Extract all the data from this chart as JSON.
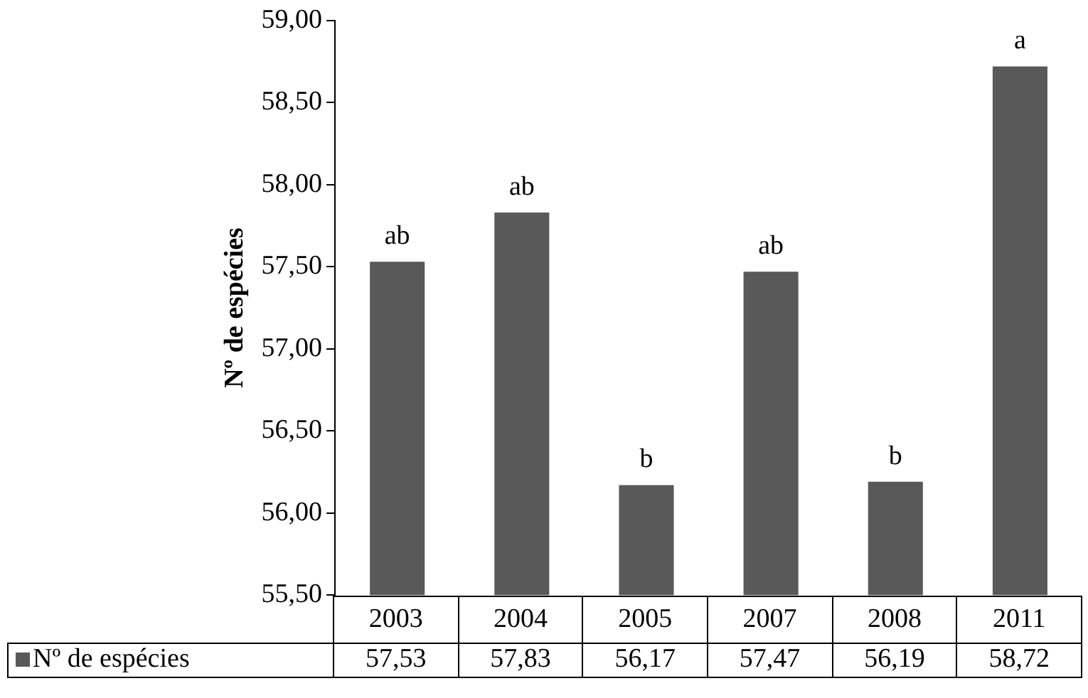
{
  "chart_data": {
    "type": "bar",
    "ylabel": "Nº de espécies",
    "categories": [
      "2003",
      "2004",
      "2005",
      "2007",
      "2008",
      "2011"
    ],
    "series": [
      {
        "name": "Nº de espécies",
        "color": "#595959",
        "values": [
          57.53,
          57.83,
          56.17,
          57.47,
          56.19,
          58.72
        ],
        "value_labels": [
          "57,53",
          "57,83",
          "56,17",
          "57,47",
          "56,19",
          "58,72"
        ]
      }
    ],
    "ylim": [
      55.5,
      59
    ],
    "yticks": [
      {
        "value": 55.5,
        "label": "55,50"
      },
      {
        "value": 56,
        "label": "56,00"
      },
      {
        "value": 56.5,
        "label": "56,50"
      },
      {
        "value": 57,
        "label": "57,00"
      },
      {
        "value": 57.5,
        "label": "57,50"
      },
      {
        "value": 58,
        "label": "58,00"
      },
      {
        "value": 58.5,
        "label": "58,50"
      },
      {
        "value": 59,
        "label": "59,00"
      }
    ],
    "annotations": [
      {
        "text": "ab",
        "x": "2003",
        "y": 57.53
      },
      {
        "text": "ab",
        "x": "2004",
        "y": 57.83
      },
      {
        "text": "b",
        "x": "2005",
        "y": 56.17
      },
      {
        "text": "ab",
        "x": "2007",
        "y": 57.47
      },
      {
        "text": "b",
        "x": "2008",
        "y": 56.19
      },
      {
        "text": "a",
        "x": "2011",
        "y": 58.72
      }
    ],
    "grid": false,
    "legend": "bottom"
  }
}
